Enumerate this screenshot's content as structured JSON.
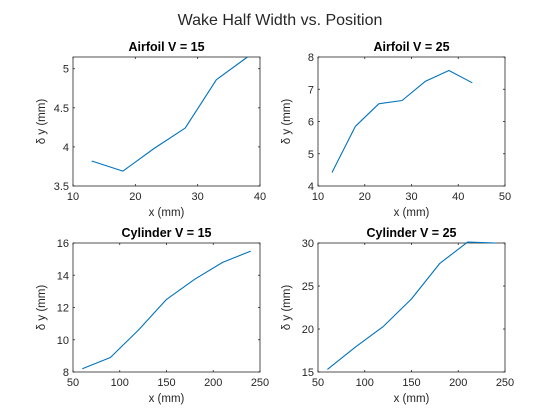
{
  "figure": {
    "title": "Wake Half Width vs. Position",
    "line_color": "#0072BD"
  },
  "chart_data": [
    {
      "type": "line",
      "title": "Airfoil V = 15",
      "xlabel": "x (mm)",
      "ylabel": "δ y (mm)",
      "xlim": [
        10,
        40
      ],
      "ylim": [
        3.5,
        5.15
      ],
      "xticks": [
        10,
        20,
        30,
        40
      ],
      "yticks": [
        3.5,
        4,
        4.5,
        5
      ],
      "x": [
        13,
        18,
        23,
        28,
        33,
        38
      ],
      "y": [
        3.82,
        3.69,
        3.98,
        4.24,
        4.86,
        5.15
      ]
    },
    {
      "type": "line",
      "title": "Airfoil V = 25",
      "xlabel": "x (mm)",
      "ylabel": "δ y (mm)",
      "xlim": [
        10,
        50
      ],
      "ylim": [
        4,
        8
      ],
      "xticks": [
        10,
        20,
        30,
        40,
        50
      ],
      "yticks": [
        4,
        5,
        6,
        7,
        8
      ],
      "x": [
        13,
        18,
        23,
        28,
        33,
        38,
        43
      ],
      "y": [
        4.42,
        5.85,
        6.55,
        6.65,
        7.25,
        7.58,
        7.2
      ]
    },
    {
      "type": "line",
      "title": "Cylinder V = 15",
      "xlabel": "x (mm)",
      "ylabel": "δ y (mm)",
      "xlim": [
        50,
        250
      ],
      "ylim": [
        8,
        16
      ],
      "xticks": [
        50,
        100,
        150,
        200,
        250
      ],
      "yticks": [
        8,
        10,
        12,
        14,
        16
      ],
      "x": [
        60,
        90,
        120,
        150,
        180,
        210,
        240
      ],
      "y": [
        8.2,
        8.9,
        10.6,
        12.5,
        13.75,
        14.8,
        15.5
      ]
    },
    {
      "type": "line",
      "title": "Cylinder V = 25",
      "xlabel": "x (mm)",
      "ylabel": "δ y (mm)",
      "xlim": [
        50,
        250
      ],
      "ylim": [
        15,
        30
      ],
      "xticks": [
        50,
        100,
        150,
        200,
        250
      ],
      "yticks": [
        15,
        20,
        25,
        30
      ],
      "x": [
        60,
        90,
        120,
        150,
        180,
        210,
        240
      ],
      "y": [
        15.3,
        17.9,
        20.3,
        23.5,
        27.6,
        30.1,
        30.0
      ]
    }
  ]
}
